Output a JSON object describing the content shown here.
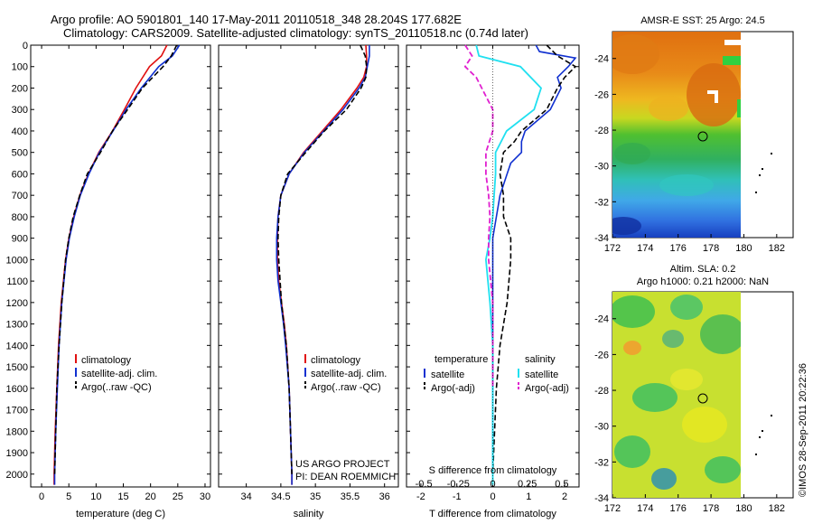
{
  "title_line1": "Argo profile: AO 5901801_140 17-May-2011 20110518_348 28.204S 177.682E",
  "title_line2": "Climatology: CARS2009. Satellite-adjusted climatology: synTS_20110518.nc (0.74d later)",
  "credit": "©IMOS 28-Sep-2011 20:22:36",
  "project_line1": "US ARGO PROJECT",
  "project_line2": "PI: DEAN ROEMMICH",
  "colors": {
    "climatology": "#e01010",
    "satellite": "#1030d0",
    "argo": "#000000",
    "salinity_sat": "#20e0f0",
    "salinity_argo": "#e020d0"
  },
  "chart_data": [
    {
      "type": "line",
      "xlabel": "temperature (deg C)",
      "ylabel": "",
      "xlim": [
        -2,
        31
      ],
      "ylim": [
        2060,
        0
      ],
      "xticks": [
        0,
        5,
        10,
        15,
        20,
        25,
        30
      ],
      "yticks": [
        0,
        100,
        200,
        300,
        400,
        500,
        600,
        700,
        800,
        900,
        1000,
        1100,
        1200,
        1300,
        1400,
        1500,
        1600,
        1700,
        1800,
        1900,
        2000
      ],
      "legend": [
        "climatology",
        "satellite-adj. clim.",
        "Argo(..raw -QC)"
      ],
      "series": [
        {
          "name": "climatology",
          "style": "red",
          "y": [
            0,
            50,
            100,
            200,
            300,
            400,
            500,
            600,
            700,
            800,
            900,
            1000,
            1200,
            1400,
            1600,
            1800,
            2000,
            2050
          ],
          "values": [
            23.0,
            22.0,
            19.8,
            17.3,
            15.2,
            13.0,
            10.5,
            8.6,
            7.0,
            5.9,
            5.0,
            4.4,
            3.6,
            3.1,
            2.8,
            2.5,
            2.3,
            2.3
          ]
        },
        {
          "name": "satellite-adj. clim.",
          "style": "blue",
          "y": [
            0,
            50,
            100,
            200,
            300,
            400,
            500,
            600,
            700,
            800,
            900,
            1000,
            1200,
            1400,
            1600,
            1800,
            2000,
            2050
          ],
          "values": [
            25.3,
            24.0,
            21.5,
            18.3,
            15.5,
            13.1,
            10.6,
            8.7,
            7.1,
            6.0,
            5.1,
            4.5,
            3.7,
            3.2,
            2.9,
            2.6,
            2.4,
            2.4
          ]
        },
        {
          "name": "Argo(..raw -QC)",
          "style": "black-dash",
          "y": [
            0,
            50,
            100,
            200,
            300,
            400,
            500,
            600,
            700,
            800,
            900,
            1000,
            1200,
            1400,
            1600,
            1800,
            2000
          ],
          "values": [
            24.8,
            23.8,
            22.3,
            18.5,
            15.8,
            13.0,
            10.8,
            8.4,
            7.0,
            5.8,
            5.0,
            4.4,
            3.7,
            3.2,
            2.8,
            2.6,
            2.4
          ]
        }
      ]
    },
    {
      "type": "line",
      "xlabel": "salinity",
      "ylabel": "",
      "xlim": [
        33.6,
        36.2
      ],
      "ylim": [
        2060,
        0
      ],
      "xticks": [
        34,
        34.5,
        35,
        35.5,
        36
      ],
      "legend": [
        "climatology",
        "satellite-adj. clim.",
        "Argo(..raw -QC)"
      ],
      "series": [
        {
          "name": "climatology",
          "style": "red",
          "y": [
            0,
            50,
            100,
            150,
            200,
            300,
            400,
            500,
            600,
            700,
            800,
            900,
            1000,
            1100,
            1200,
            1300,
            1400,
            1600,
            1800,
            2000,
            2050
          ],
          "values": [
            35.73,
            35.74,
            35.74,
            35.7,
            35.6,
            35.37,
            35.1,
            34.83,
            34.62,
            34.5,
            34.46,
            34.45,
            34.45,
            34.47,
            34.51,
            34.55,
            34.58,
            34.62,
            34.64,
            34.66,
            34.66
          ]
        },
        {
          "name": "satellite-adj. clim.",
          "style": "blue",
          "y": [
            0,
            50,
            100,
            150,
            200,
            300,
            400,
            500,
            600,
            700,
            800,
            900,
            1000,
            1100,
            1200,
            1300,
            1400,
            1600,
            1800,
            2000,
            2050
          ],
          "values": [
            35.78,
            35.78,
            35.75,
            35.72,
            35.63,
            35.4,
            35.12,
            34.84,
            34.62,
            34.5,
            34.46,
            34.44,
            34.44,
            34.46,
            34.5,
            34.54,
            34.57,
            34.62,
            34.64,
            34.66,
            34.66
          ]
        },
        {
          "name": "Argo(..raw -QC)",
          "style": "black-dash",
          "y": [
            0,
            50,
            100,
            150,
            200,
            300,
            400,
            500,
            600,
            700,
            800,
            900,
            1000,
            1200,
            1400,
            1600,
            1800,
            2000
          ],
          "values": [
            35.65,
            35.72,
            35.74,
            35.73,
            35.66,
            35.45,
            35.13,
            34.86,
            34.6,
            34.5,
            34.47,
            34.46,
            34.47,
            34.51,
            34.58,
            34.62,
            34.64,
            34.66
          ]
        }
      ]
    },
    {
      "type": "line",
      "xlabel": "T difference from climatology",
      "xlabel_top": "S difference from climatology",
      "xlim": [
        -2.4,
        2.4
      ],
      "ylim": [
        2060,
        0
      ],
      "xticks": [
        -2,
        -1,
        0,
        1,
        2
      ],
      "xticks_top": [
        -0.5,
        -0.25,
        0,
        0.25,
        0.5
      ],
      "legend_titles": [
        "temperature",
        "salinity"
      ],
      "legend_temperature": [
        "satellite",
        "Argo(-adj)"
      ],
      "legend_salinity": [
        "satellite",
        "Argo(-adj)"
      ],
      "series": [
        {
          "name": "satellite",
          "style": "blue",
          "y": [
            0,
            30,
            60,
            100,
            150,
            200,
            300,
            400,
            450,
            500,
            550,
            600,
            700,
            800,
            900,
            1000,
            1200,
            1400,
            1600,
            1800,
            2000
          ],
          "values": [
            1.2,
            1.3,
            2.3,
            2.1,
            1.8,
            1.9,
            1.6,
            0.9,
            0.8,
            0.8,
            0.5,
            0.4,
            0.2,
            0.1,
            0.0,
            0.0,
            0.0,
            0.0,
            0.0,
            0.0,
            0.0
          ]
        },
        {
          "name": "Argo(-adj)",
          "style": "black-dash",
          "y": [
            0,
            50,
            100,
            150,
            200,
            300,
            400,
            450,
            500,
            600,
            700,
            800,
            900,
            1000,
            1200,
            1400,
            1600,
            1800,
            2000
          ],
          "values": [
            1.5,
            1.8,
            2.3,
            2.0,
            1.8,
            1.5,
            0.8,
            0.6,
            0.3,
            0.2,
            0.3,
            0.3,
            0.5,
            0.5,
            0.4,
            0.2,
            0.1,
            0.05,
            0.0
          ]
        },
        {
          "name": "satellite (salinity)",
          "style": "cyan",
          "y": [
            0,
            50,
            100,
            200,
            300,
            400,
            500,
            600,
            700,
            800,
            900,
            1000,
            1200,
            1400,
            1600,
            1800,
            2000,
            2050
          ],
          "values": [
            -0.12,
            -0.1,
            0.2,
            0.35,
            0.3,
            0.1,
            0.02,
            0.02,
            0.01,
            0.0,
            -0.02,
            -0.05,
            -0.02,
            0.0,
            0.0,
            0.0,
            0.0,
            0.0
          ]
        },
        {
          "name": "Argo(-adj) (salinity)",
          "style": "magenta-dash",
          "y": [
            0,
            50,
            100,
            150,
            200,
            300,
            400,
            500,
            600,
            700,
            800,
            900,
            1000,
            1200,
            1400,
            1600
          ],
          "values": [
            -0.2,
            -0.15,
            -0.2,
            -0.12,
            -0.08,
            0.0,
            0.0,
            -0.05,
            -0.05,
            -0.03,
            -0.02,
            -0.03,
            -0.03,
            0.0,
            0.0,
            0.0
          ]
        }
      ]
    },
    {
      "type": "heatmap",
      "title": "AMSR-E SST: 25 Argo: 24.5",
      "xlim": [
        172,
        183
      ],
      "ylim": [
        -34,
        -22.5
      ],
      "xticks": [
        172,
        174,
        176,
        178,
        180,
        182
      ],
      "yticks": [
        -34,
        -32,
        -30,
        -28,
        -26,
        -24
      ],
      "marker": {
        "lon": 177.682,
        "lat": -28.204
      }
    },
    {
      "type": "heatmap",
      "title": "Altim. SLA: 0.2",
      "subtitle": "Argo h1000: 0.21 h2000: NaN",
      "xlim": [
        172,
        183
      ],
      "ylim": [
        -34,
        -22.5
      ],
      "xticks": [
        172,
        174,
        176,
        178,
        180,
        182
      ],
      "yticks": [
        -34,
        -32,
        -30,
        -28,
        -26,
        -24
      ],
      "marker": {
        "lon": 177.682,
        "lat": -28.204
      }
    }
  ]
}
